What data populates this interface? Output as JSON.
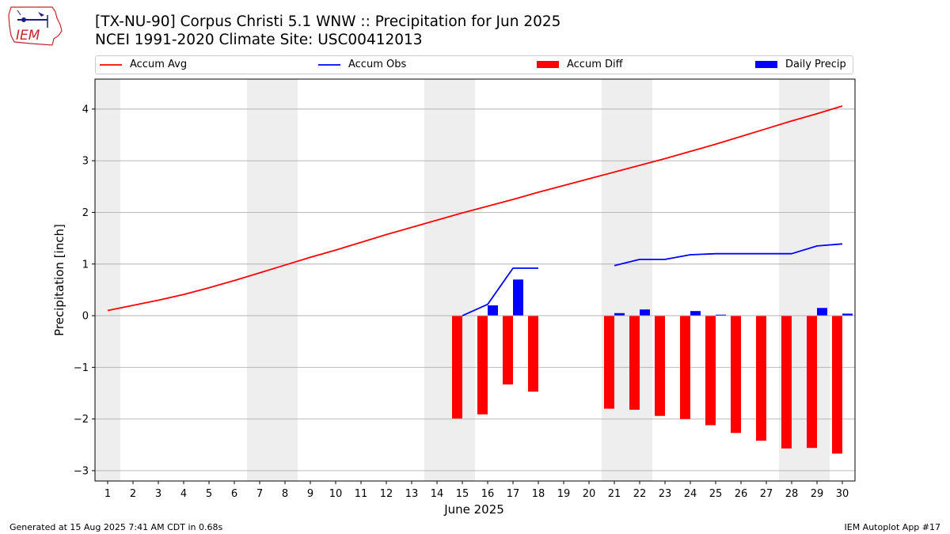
{
  "header": {
    "title_line1": "[TX-NU-90] Corpus Christi 5.1 WNW :: Precipitation for Jun 2025",
    "title_line2": "NCEI 1991-2020 Climate Site: USC00412013",
    "logo_text": "IEM"
  },
  "footer": {
    "generated": "Generated at 15 Aug 2025 7:41 AM CDT in 0.68s",
    "app": "IEM Autoplot App #17"
  },
  "colors": {
    "accum_avg": "#ff0000",
    "accum_obs": "#0000ff",
    "accum_diff": "#ff0000",
    "daily_precip": "#0000ff",
    "weekend_shade": "#eeeeee",
    "grid": "#b0b0b0"
  },
  "chart_data": {
    "type": "bar",
    "title": "[TX-NU-90] Corpus Christi 5.1 WNW :: Precipitation for Jun 2025",
    "subtitle": "NCEI 1991-2020 Climate Site: USC00412013",
    "xlabel": "June 2025",
    "ylabel": "Precipitation [inch]",
    "ylim": [
      -3.2,
      4.58
    ],
    "yticks": [
      -3,
      -2,
      -1,
      0,
      1,
      2,
      3,
      4
    ],
    "ytick_labels": [
      "−3",
      "−2",
      "−1",
      "0",
      "1",
      "2",
      "3",
      "4"
    ],
    "days": [
      1,
      2,
      3,
      4,
      5,
      6,
      7,
      8,
      9,
      10,
      11,
      12,
      13,
      14,
      15,
      16,
      17,
      18,
      19,
      20,
      21,
      22,
      23,
      24,
      25,
      26,
      27,
      28,
      29,
      30
    ],
    "weekend_days": [
      1,
      7,
      8,
      14,
      15,
      21,
      22,
      28,
      29
    ],
    "grid": "horizontal",
    "legend_position": "top",
    "legend": [
      "Accum Avg",
      "Accum Obs",
      "Accum Diff",
      "Daily Precip"
    ],
    "series": [
      {
        "name": "Accum Avg",
        "kind": "line",
        "values": [
          0.1,
          0.2,
          0.3,
          0.41,
          0.54,
          0.68,
          0.83,
          0.98,
          1.13,
          1.27,
          1.42,
          1.57,
          1.71,
          1.85,
          1.99,
          2.12,
          2.25,
          2.39,
          2.52,
          2.65,
          2.78,
          2.91,
          3.04,
          3.18,
          3.32,
          3.47,
          3.62,
          3.77,
          3.91,
          4.06
        ]
      },
      {
        "name": "Accum Obs",
        "kind": "line",
        "values": [
          null,
          null,
          null,
          null,
          null,
          null,
          null,
          null,
          null,
          null,
          null,
          null,
          null,
          null,
          0.0,
          0.22,
          0.92,
          0.92,
          null,
          null,
          0.97,
          1.09,
          1.09,
          1.18,
          1.2,
          1.2,
          1.2,
          1.2,
          1.35,
          1.39
        ]
      },
      {
        "name": "Accum Diff",
        "kind": "bar",
        "values": [
          null,
          null,
          null,
          null,
          null,
          null,
          null,
          null,
          null,
          null,
          null,
          null,
          null,
          null,
          -1.99,
          -1.91,
          -1.33,
          -1.47,
          null,
          null,
          -1.8,
          -1.82,
          -1.94,
          -2.0,
          -2.12,
          -2.27,
          -2.42,
          -2.57,
          -2.56,
          -2.67
        ]
      },
      {
        "name": "Daily Precip",
        "kind": "bar",
        "values": [
          null,
          null,
          null,
          null,
          null,
          null,
          null,
          null,
          null,
          null,
          null,
          null,
          null,
          null,
          null,
          0.2,
          0.7,
          null,
          null,
          null,
          0.05,
          0.12,
          null,
          0.09,
          0.02,
          null,
          null,
          null,
          0.15,
          0.04
        ]
      }
    ]
  }
}
